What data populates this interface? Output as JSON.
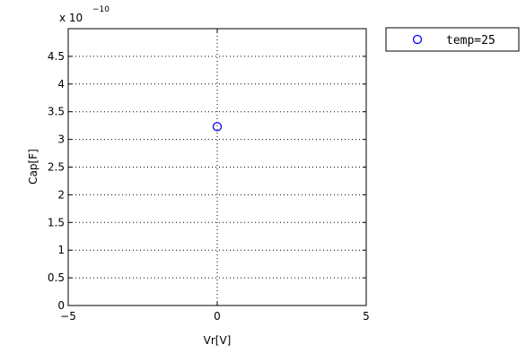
{
  "chart_data": {
    "type": "scatter",
    "xlabel": "Vr[V]",
    "ylabel": "Cap[F]",
    "xlim": [
      -5,
      5
    ],
    "ylim": [
      0,
      5e-10
    ],
    "y_scale_label": "x 10",
    "y_scale_exponent": "−10",
    "xticks": [
      {
        "value": -5,
        "label": "−5"
      },
      {
        "value": 0,
        "label": "0"
      },
      {
        "value": 5,
        "label": "5"
      }
    ],
    "yticks": [
      {
        "value": 0,
        "label": "0"
      },
      {
        "value": 5e-11,
        "label": "0.5"
      },
      {
        "value": 1e-10,
        "label": "1"
      },
      {
        "value": 1.5e-10,
        "label": "1.5"
      },
      {
        "value": 2e-10,
        "label": "2"
      },
      {
        "value": 2.5e-10,
        "label": "2.5"
      },
      {
        "value": 3e-10,
        "label": "3"
      },
      {
        "value": 3.5e-10,
        "label": "3.5"
      },
      {
        "value": 4e-10,
        "label": "4"
      },
      {
        "value": 4.5e-10,
        "label": "4.5"
      }
    ],
    "grid": true,
    "legend_position": "outside-top-right",
    "series": [
      {
        "name": "temp=25",
        "color": "#0000ff",
        "marker": "circle",
        "points": [
          {
            "x": 0,
            "y": 3.23e-10
          }
        ]
      }
    ]
  }
}
